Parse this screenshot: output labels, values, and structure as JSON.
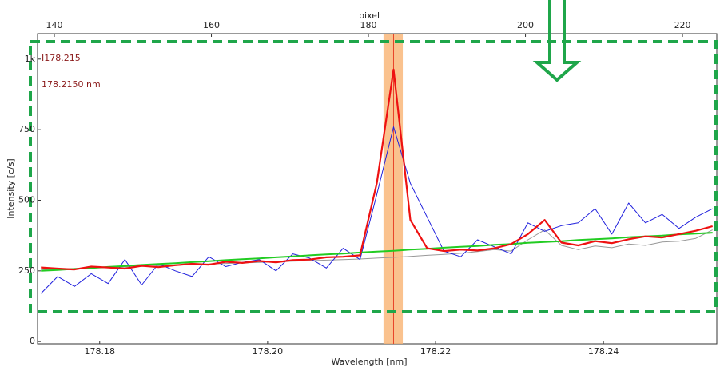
{
  "chart_data": {
    "type": "line",
    "xlabel": "Wavelength [nm]",
    "ylabel": "Intensity [c/s]",
    "x2label": "pixel",
    "annotations": [
      "I178.215",
      "178.2150 nm"
    ],
    "xlim": [
      178.1726,
      178.2535
    ],
    "xticks": [
      {
        "value": 178.18,
        "label": "178.18"
      },
      {
        "value": 178.2,
        "label": "178.20"
      },
      {
        "value": 178.22,
        "label": "178.22"
      },
      {
        "value": 178.24,
        "label": "178.24"
      }
    ],
    "x2lim": [
      137.86,
      224.37
    ],
    "x2ticks": [
      140,
      160,
      180,
      200,
      220
    ],
    "ylim": [
      -8,
      1090
    ],
    "yticks": [
      0,
      250,
      500,
      750,
      {
        "value": 1000,
        "label": "1k"
      }
    ],
    "highlight": [
      178.2138,
      178.2161
    ],
    "highlight_color": "#f9b77a",
    "marker": 178.215,
    "marker_color": "#e8442a",
    "x": [
      178.173,
      178.175,
      178.177,
      178.179,
      178.181,
      178.183,
      178.185,
      178.187,
      178.189,
      178.191,
      178.193,
      178.195,
      178.197,
      178.199,
      178.201,
      178.203,
      178.205,
      178.207,
      178.209,
      178.211,
      178.213,
      178.215,
      178.217,
      178.219,
      178.221,
      178.223,
      178.225,
      178.227,
      178.229,
      178.231,
      178.233,
      178.235,
      178.237,
      178.239,
      178.241,
      178.243,
      178.245,
      178.247,
      178.249,
      178.251,
      178.253
    ],
    "series": [
      {
        "color": "#999999",
        "width": 1,
        "values": [
          255,
          256,
          258,
          260,
          262,
          264,
          266,
          268,
          270,
          272,
          274,
          276,
          278,
          280,
          282,
          284,
          286,
          288,
          290,
          292,
          295,
          298,
          301,
          305,
          308,
          312,
          318,
          325,
          320,
          360,
          395,
          340,
          325,
          338,
          332,
          345,
          340,
          352,
          355,
          365,
          395
        ]
      },
      {
        "color": "#2020dd",
        "width": 1,
        "values": [
          170,
          230,
          195,
          240,
          205,
          290,
          200,
          275,
          250,
          230,
          300,
          265,
          280,
          290,
          250,
          310,
          295,
          260,
          330,
          290,
          520,
          760,
          560,
          440,
          320,
          300,
          360,
          335,
          310,
          420,
          390,
          410,
          420,
          470,
          380,
          490,
          420,
          450,
          400,
          440,
          470
        ]
      },
      {
        "color": "#22cc22",
        "width": 2,
        "values": [
          250,
          253,
          257,
          260,
          264,
          267,
          271,
          274,
          277,
          281,
          284,
          288,
          291,
          294,
          298,
          301,
          305,
          308,
          311,
          315,
          318,
          321,
          325,
          328,
          332,
          335,
          338,
          342,
          345,
          349,
          352,
          355,
          359,
          362,
          365,
          369,
          372,
          375,
          379,
          382,
          385
        ]
      },
      {
        "color": "#ee1111",
        "width": 2.2,
        "values": [
          262,
          258,
          255,
          265,
          262,
          258,
          268,
          263,
          270,
          275,
          272,
          282,
          278,
          285,
          280,
          288,
          290,
          298,
          300,
          305,
          560,
          963,
          430,
          330,
          320,
          325,
          322,
          330,
          345,
          380,
          430,
          350,
          340,
          355,
          348,
          362,
          372,
          368,
          380,
          392,
          408
        ]
      }
    ]
  }
}
